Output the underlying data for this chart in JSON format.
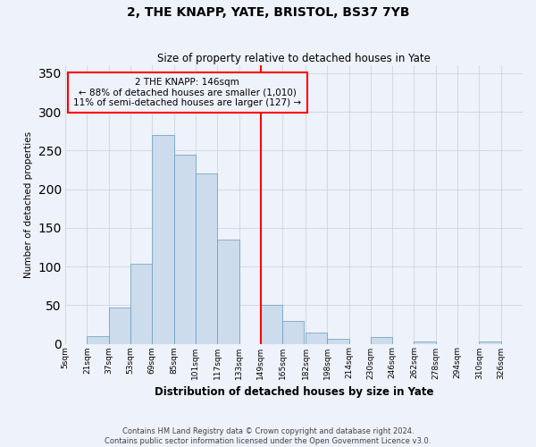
{
  "title": "2, THE KNAPP, YATE, BRISTOL, BS37 7YB",
  "subtitle": "Size of property relative to detached houses in Yate",
  "xlabel": "Distribution of detached houses by size in Yate",
  "ylabel": "Number of detached properties",
  "bin_labels": [
    "5sqm",
    "21sqm",
    "37sqm",
    "53sqm",
    "69sqm",
    "85sqm",
    "101sqm",
    "117sqm",
    "133sqm",
    "149sqm",
    "165sqm",
    "182sqm",
    "198sqm",
    "214sqm",
    "230sqm",
    "246sqm",
    "262sqm",
    "278sqm",
    "294sqm",
    "310sqm",
    "326sqm"
  ],
  "bin_edges": [
    5,
    21,
    37,
    53,
    69,
    85,
    101,
    117,
    133,
    149,
    165,
    182,
    198,
    214,
    230,
    246,
    262,
    278,
    294,
    310,
    326,
    342
  ],
  "counts": [
    0,
    10,
    47,
    104,
    270,
    245,
    220,
    135,
    0,
    50,
    30,
    15,
    6,
    0,
    9,
    0,
    3,
    0,
    0,
    3,
    0
  ],
  "bar_color": "#ccdcec",
  "bar_edge_color": "#6699bb",
  "vline_x": 149,
  "vline_color": "red",
  "annotation_text": "2 THE KNAPP: 146sqm\n← 88% of detached houses are smaller (1,010)\n11% of semi-detached houses are larger (127) →",
  "annotation_box_color": "red",
  "ylim": [
    0,
    360
  ],
  "yticks": [
    0,
    50,
    100,
    150,
    200,
    250,
    300,
    350
  ],
  "footer": "Contains HM Land Registry data © Crown copyright and database right 2024.\nContains public sector information licensed under the Open Government Licence v3.0.",
  "bg_color": "#eef2fa",
  "grid_color": "#ccccdd"
}
